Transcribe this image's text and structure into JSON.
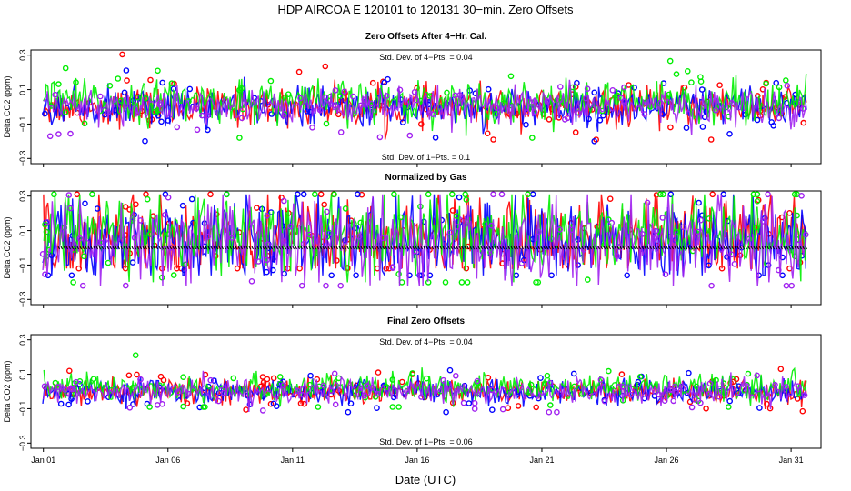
{
  "title": "HDP    AIRCOA E    120101 to 120131    30−min. Zero Offsets",
  "xlabel": "Date (UTC)",
  "ylabel": "Delta CO2 (ppm)",
  "colors": {
    "series": [
      "#ff0000",
      "#0000ff",
      "#00ee00",
      "#a020f0"
    ],
    "mean_marks": "#000000",
    "frame": "#000000"
  },
  "chart_data": [
    {
      "type": "scatter",
      "title": "Zero Offsets After 4−Hr. Cal.",
      "annotation_top": "Std. Dev. of 4−Pts. =  0.04",
      "annotation_bottom": "Std. Dev. of 1−Pts. =  0.1",
      "ylabel": "Delta CO2 (ppm)",
      "ylim": [
        -0.33,
        0.33
      ],
      "yticks": [
        -0.3,
        -0.1,
        0.1,
        0.3
      ],
      "ytick_labels": [
        "−0.3",
        "−0.1",
        "0.1",
        "0.3"
      ],
      "xlim": [
        0.5,
        32.2
      ],
      "xticks": [
        1,
        6,
        11,
        16,
        21,
        26,
        31
      ],
      "xtick_labels": [
        "Jan 01",
        "Jan 06",
        "Jan 11",
        "Jan 16",
        "Jan 21",
        "Jan 26",
        "Jan 31"
      ],
      "x_range": [
        1,
        31.6
      ],
      "series": [
        {
          "name": "red gas",
          "center": 0.0,
          "spread": 0.055,
          "markers": 60,
          "max": 0.31,
          "min": -0.19
        },
        {
          "name": "blue gas",
          "center": 0.0,
          "spread": 0.055,
          "markers": 60,
          "max": 0.3,
          "min": -0.2
        },
        {
          "name": "green gas",
          "center": 0.03,
          "spread": 0.06,
          "markers": 60,
          "max": 0.31,
          "min": -0.18
        },
        {
          "name": "purple gas",
          "center": 0.0,
          "spread": 0.05,
          "markers": 60,
          "max": 0.25,
          "min": -0.22
        }
      ],
      "mean_line": false
    },
    {
      "type": "scatter",
      "title": "Normalized by Gas",
      "annotation_top": "",
      "annotation_bottom": "",
      "ylabel": "Delta CO2 (ppm)",
      "ylim": [
        -0.33,
        0.33
      ],
      "yticks": [
        -0.3,
        -0.1,
        0.1,
        0.3
      ],
      "ytick_labels": [
        "−0.3",
        "−0.1",
        "0.1",
        "0.3"
      ],
      "xlim": [
        0.5,
        32.2
      ],
      "xticks": [
        1,
        6,
        11,
        16,
        21,
        26,
        31
      ],
      "xtick_labels": [
        "Jan 01",
        "Jan 06",
        "Jan 11",
        "Jan 16",
        "Jan 21",
        "Jan 26",
        "Jan 31"
      ],
      "x_range": [
        1,
        31.6
      ],
      "series": [
        {
          "name": "red gas",
          "center": 0.06,
          "spread": 0.12,
          "markers": 70,
          "max": 0.31,
          "min": -0.12
        },
        {
          "name": "blue gas",
          "center": 0.04,
          "spread": 0.12,
          "markers": 70,
          "max": 0.31,
          "min": -0.16
        },
        {
          "name": "green gas",
          "center": 0.08,
          "spread": 0.12,
          "markers": 70,
          "max": 0.31,
          "min": -0.2
        },
        {
          "name": "purple gas",
          "center": 0.03,
          "spread": 0.12,
          "markers": 70,
          "max": 0.31,
          "min": -0.22
        }
      ],
      "mean_line": true,
      "mean_value": 0.0
    },
    {
      "type": "scatter",
      "title": "Final Zero Offsets",
      "annotation_top": "Std. Dev. of 4−Pts. =  0.04",
      "annotation_bottom": "Std. Dev. of 1−Pts. =  0.06",
      "ylabel": "Delta CO2 (ppm)",
      "ylim": [
        -0.33,
        0.33
      ],
      "yticks": [
        -0.3,
        -0.1,
        0.1,
        0.3
      ],
      "ytick_labels": [
        "−0.3",
        "−0.1",
        "0.1",
        "0.3"
      ],
      "xlim": [
        0.5,
        32.2
      ],
      "xticks": [
        1,
        6,
        11,
        16,
        21,
        26,
        31
      ],
      "xtick_labels": [
        "Jan 01",
        "Jan 06",
        "Jan 11",
        "Jan 16",
        "Jan 21",
        "Jan 26",
        "Jan 31"
      ],
      "x_range": [
        1,
        31.6
      ],
      "series": [
        {
          "name": "red gas",
          "center": 0.0,
          "spread": 0.035,
          "markers": 60,
          "max": 0.16,
          "min": -0.13
        },
        {
          "name": "blue gas",
          "center": 0.0,
          "spread": 0.035,
          "markers": 60,
          "max": 0.18,
          "min": -0.12
        },
        {
          "name": "green gas",
          "center": 0.02,
          "spread": 0.04,
          "markers": 60,
          "max": 0.21,
          "min": -0.09
        },
        {
          "name": "purple gas",
          "center": 0.0,
          "spread": 0.035,
          "markers": 60,
          "max": 0.12,
          "min": -0.12
        }
      ],
      "mean_line": false
    }
  ]
}
